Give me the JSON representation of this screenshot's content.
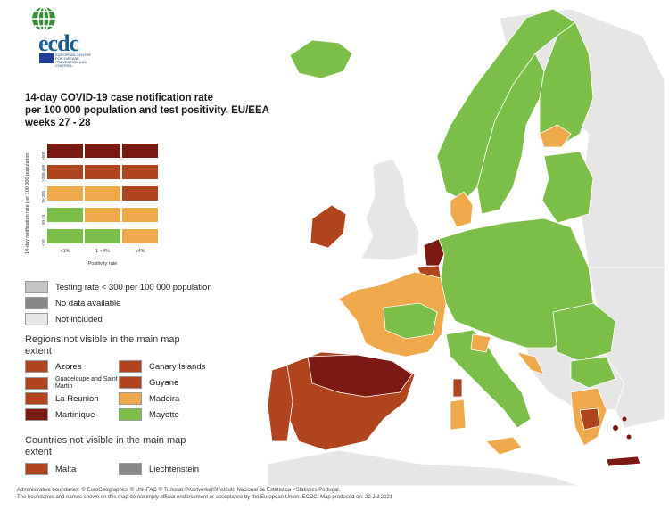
{
  "logo": {
    "text": "ecdc",
    "subtitle": "EUROPEAN CENTRE FOR DISEASE PREVENTION AND CONTROL"
  },
  "title": {
    "line1": "14-day COVID-19 case notification rate",
    "line2": "per 100 000 population and test positivity, EU/EEA",
    "line3": "weeks 27 - 28"
  },
  "matrix": {
    "y_label": "14-day notification rate per 100 000 population",
    "y_ticks": [
      ">500",
      ">200-499",
      "75-200",
      "50-74",
      "<50"
    ],
    "x_ticks": [
      "<1%",
      "1-<4%",
      "≥4%"
    ],
    "x_label": "Positivity rate",
    "cells": [
      [
        "#7a1a12",
        "#7a1a12",
        "#7a1a12"
      ],
      [
        "#b0441f",
        "#b0441f",
        "#b0441f"
      ],
      [
        "#f0a94a",
        "#f0a94a",
        "#b0441f"
      ],
      [
        "#7cbf48",
        "#f0a94a",
        "#f0a94a"
      ],
      [
        "#7cbf48",
        "#7cbf48",
        "#f0a94a"
      ]
    ]
  },
  "legend": {
    "testing_rate": "Testing rate < 300 per 100 000 population",
    "no_data": "No data available",
    "not_included": "Not included",
    "regions_heading": "Regions not visible in the main map extent",
    "regions": [
      {
        "name": "Azores",
        "color": "#b0441f"
      },
      {
        "name": "Canary Islands",
        "color": "#b0441f"
      },
      {
        "name": "Guadeloupe and Saint Martin",
        "color": "#b0441f"
      },
      {
        "name": "Guyane",
        "color": "#b0441f"
      },
      {
        "name": "La Reunion",
        "color": "#b0441f"
      },
      {
        "name": "Madeira",
        "color": "#f0a94a"
      },
      {
        "name": "Martinique",
        "color": "#7a1a12"
      },
      {
        "name": "Mayotte",
        "color": "#7cbf48"
      }
    ],
    "countries_heading": "Countries not visible in the main map extent",
    "countries": [
      {
        "name": "Malta",
        "color": "#b0441f"
      },
      {
        "name": "Liechtenstein",
        "color": "#888888"
      }
    ]
  },
  "colors": {
    "dark_red": "#7a1a12",
    "red": "#b0441f",
    "orange": "#f0a94a",
    "green": "#7cbf48",
    "grey_testing": "#c4c4c4",
    "grey_nodata": "#888888",
    "not_included": "#e6e6e6",
    "sea": "#ffffff"
  },
  "footer": {
    "line1": "Administrative boundaries: © EuroGeographics © UN–FAO © Turkstat.©Kartverket©Instituto Nacional de Estatistica - Statistics Portugal.",
    "line2": "The boundaries and names shown on this map do not imply official endorsement or acceptance by the European Union. ECDC. Map produced on: 22 Jul 2021"
  }
}
